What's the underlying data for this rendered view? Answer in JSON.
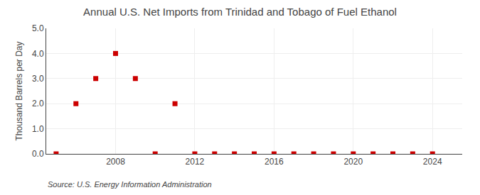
{
  "chart_data": {
    "type": "scatter",
    "title": "Annual U.S. Net Imports from Trinidad and Tobago of Fuel Ethanol",
    "ylabel": "Thousand Barrels per Day",
    "annotations": [
      "Source: U.S. Energy Information Administration"
    ],
    "x": [
      2005,
      2006,
      2007,
      2008,
      2009,
      2010,
      2011,
      2012,
      2013,
      2014,
      2015,
      2016,
      2017,
      2018,
      2019,
      2020,
      2021,
      2022,
      2023,
      2024
    ],
    "values": [
      0.0,
      2.0,
      3.0,
      4.0,
      3.0,
      0.0,
      2.0,
      0.0,
      0.0,
      0.0,
      0.0,
      0.0,
      0.0,
      0.0,
      0.0,
      0.0,
      0.0,
      0.0,
      0.0,
      0.0
    ],
    "color": "#cc0000",
    "marker": "square",
    "xlim": [
      2004.5,
      2025.5
    ],
    "xticks": [
      2008,
      2012,
      2016,
      2020,
      2024
    ],
    "ylim": [
      0.0,
      5.0
    ],
    "yticks": [
      {
        "value": 0.0,
        "label": "0.0"
      },
      {
        "value": 1.0,
        "label": "1.0"
      },
      {
        "value": 2.0,
        "label": "2.0"
      },
      {
        "value": 3.0,
        "label": "3.0"
      },
      {
        "value": 4.0,
        "label": "4.0"
      },
      {
        "value": 5.0,
        "label": "5.0"
      }
    ],
    "grid": true
  }
}
